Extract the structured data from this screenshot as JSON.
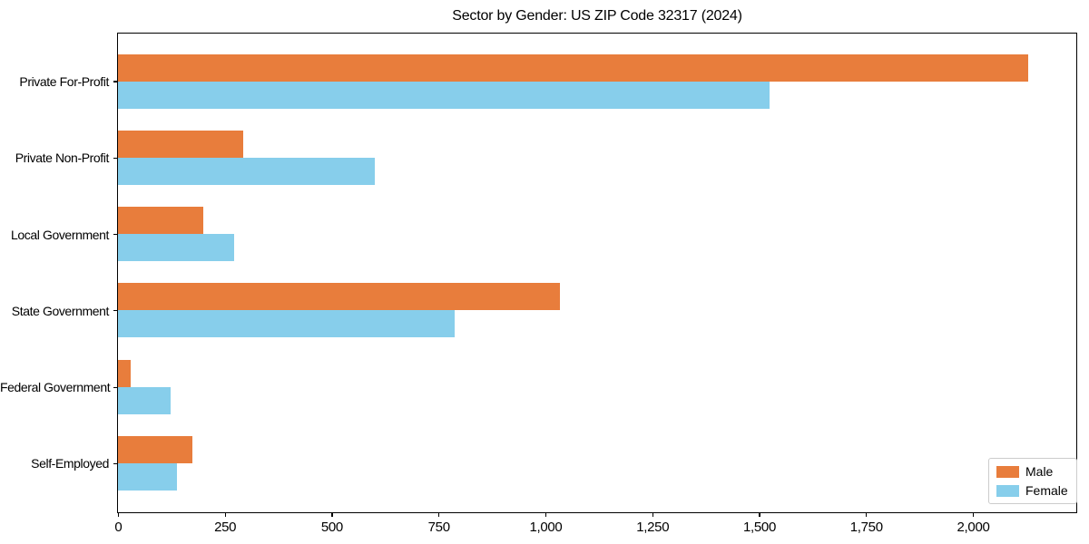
{
  "chart_data": {
    "type": "bar",
    "orientation": "horizontal",
    "title": "Sector by Gender: US ZIP Code 32317 (2024)",
    "xlabel": "",
    "ylabel": "",
    "categories": [
      "Private For-Profit",
      "Private Non-Profit",
      "Local Government",
      "State Government",
      "Federal Government",
      "Self-Employed"
    ],
    "series": [
      {
        "name": "Male",
        "color": "#E87D3C",
        "values": [
          2130,
          293,
          200,
          1033,
          30,
          175
        ]
      },
      {
        "name": "Female",
        "color": "#87CEEB",
        "values": [
          1524,
          600,
          271,
          788,
          123,
          139
        ]
      }
    ],
    "xlim": [
      0,
      2240
    ],
    "xticks": [
      0,
      250,
      500,
      750,
      1000,
      1250,
      1500,
      1750,
      2000
    ],
    "xtick_labels": [
      "0",
      "250",
      "500",
      "750",
      "1,000",
      "1,250",
      "1,500",
      "1,750",
      "2,000"
    ],
    "grid": false,
    "legend": {
      "position": "lower-right",
      "entries": [
        "Male",
        "Female"
      ],
      "border_color": "#CCCCCC"
    },
    "axis_color": "#000000",
    "background_color": "#FFFFFF"
  }
}
